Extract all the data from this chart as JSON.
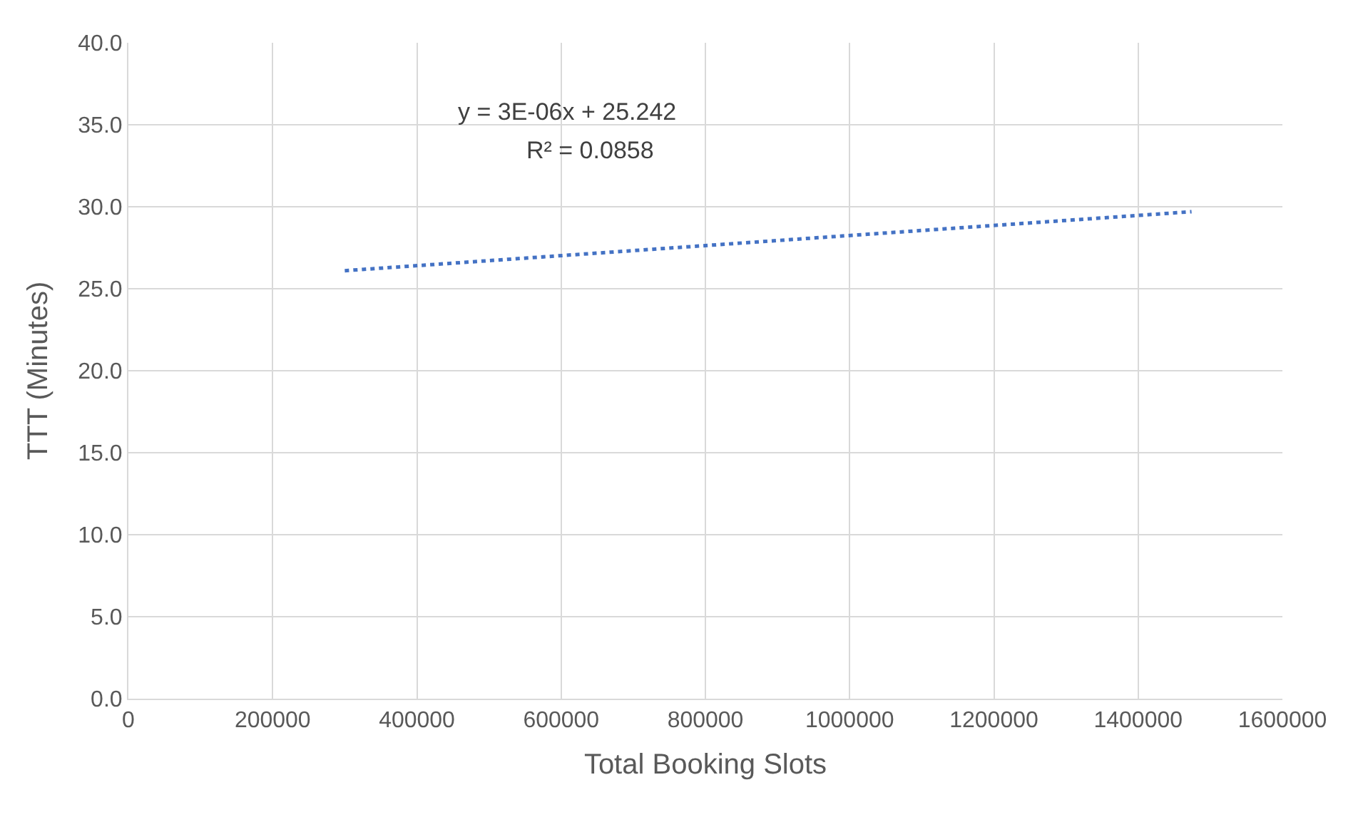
{
  "chart_data": {
    "type": "line",
    "xlabel": "Total Booking Slots",
    "ylabel": "TTT (Minutes)",
    "x": [
      300000,
      1474000
    ],
    "series": [
      {
        "color": "#4472c4",
        "values": [
          26.1,
          29.7
        ]
      }
    ],
    "xlim": [
      0,
      1600000
    ],
    "xticks": [
      0,
      200000,
      400000,
      600000,
      800000,
      1000000,
      1200000,
      1400000,
      1600000
    ],
    "ylim": [
      0,
      40
    ],
    "yticks": [
      {
        "value": 0,
        "label": "0.0"
      },
      {
        "value": 5,
        "label": "5.0"
      },
      {
        "value": 10,
        "label": "10.0"
      },
      {
        "value": 15,
        "label": "15.0"
      },
      {
        "value": 20,
        "label": "20.0"
      },
      {
        "value": 25,
        "label": "25.0"
      },
      {
        "value": 30,
        "label": "30.0"
      },
      {
        "value": 35,
        "label": "35.0"
      },
      {
        "value": 40,
        "label": "40.0"
      }
    ],
    "annotations": [
      "y = 3E-06x + 25.242",
      "R² = 0.0858"
    ],
    "grid": true,
    "legend": false,
    "marker": "none",
    "line_style": "dotted"
  }
}
